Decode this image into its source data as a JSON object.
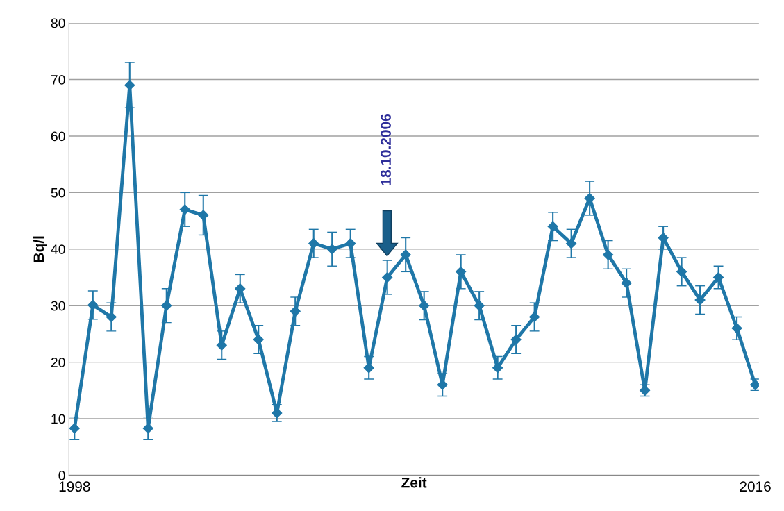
{
  "chart_data": {
    "type": "line",
    "xlabel": "Zeit",
    "ylabel": "Bq/l",
    "x": [
      1998,
      1998.5,
      1999,
      1999.5,
      2000,
      2000.5,
      2001,
      2001.5,
      2002,
      2002.5,
      2003,
      2003.5,
      2004,
      2004.5,
      2005,
      2005.5,
      2006,
      2006.5,
      2007,
      2007.5,
      2008,
      2008.5,
      2009,
      2009.5,
      2010,
      2010.5,
      2011,
      2011.5,
      2012,
      2012.5,
      2013,
      2013.5,
      2014,
      2014.5,
      2015,
      2015.5,
      2016,
      2016.5
    ],
    "series": [
      {
        "color": "#1f77a8",
        "values": [
          8.3,
          30.1,
          28,
          69,
          8.3,
          30,
          47,
          46,
          23,
          33,
          24,
          11,
          29,
          41,
          40,
          41,
          19,
          35,
          39,
          30,
          16,
          36,
          30,
          19,
          24,
          28,
          44,
          41,
          49,
          39,
          34,
          15,
          42,
          36,
          31,
          35,
          26,
          16
        ],
        "errors": [
          2,
          2.5,
          2.5,
          4,
          2,
          3,
          3,
          3.5,
          2.5,
          2.5,
          2.5,
          1.5,
          2.5,
          2.5,
          3,
          2.5,
          2,
          3,
          3,
          2.5,
          2,
          3,
          2.5,
          2,
          2.5,
          2.5,
          2.5,
          2.5,
          3,
          2.5,
          2.5,
          1,
          2,
          2.5,
          2.5,
          2,
          2,
          1
        ]
      }
    ],
    "marker": "diamond",
    "line_style": "solid",
    "grid": "y",
    "xlim": [
      1997.85,
      2016.6
    ],
    "xticks": [
      {
        "value": 1998,
        "label": "1998"
      },
      {
        "value": 2016.5,
        "label": "2016"
      }
    ],
    "ylim": [
      0,
      80
    ],
    "yticks": [
      0,
      10,
      20,
      30,
      40,
      50,
      60,
      70,
      80
    ],
    "annotations": [
      "18.10.2006"
    ]
  }
}
